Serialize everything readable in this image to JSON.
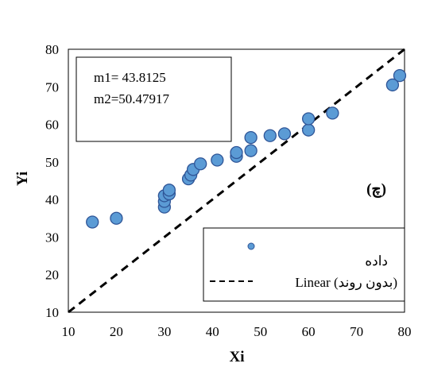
{
  "chart_data": {
    "type": "scatter",
    "panel_label": "(چ)",
    "xlabel": "Xi",
    "ylabel": "Yi",
    "xlim": [
      10,
      80
    ],
    "ylim": [
      10,
      80
    ],
    "x_ticks": [
      10,
      20,
      30,
      40,
      50,
      60,
      70,
      80
    ],
    "y_ticks": [
      10,
      20,
      30,
      40,
      50,
      60,
      70,
      80
    ],
    "grid": false,
    "annotation": {
      "line1": "m1= 43.8125",
      "line2": "m2=50.47917"
    },
    "legend": {
      "position": "bottom-right",
      "entries": [
        {
          "label": "داده",
          "kind": "marker"
        },
        {
          "label": "Linear  (بدون روند)",
          "kind": "dashed-line"
        }
      ]
    },
    "series": [
      {
        "kind": "scatter",
        "color": "#5B9BD5",
        "points": [
          [
            15,
            34
          ],
          [
            20,
            35
          ],
          [
            30,
            38
          ],
          [
            30,
            39.5
          ],
          [
            30,
            41
          ],
          [
            31,
            41.5
          ],
          [
            31,
            42.5
          ],
          [
            35,
            45.5
          ],
          [
            35.5,
            46.5
          ],
          [
            36,
            48
          ],
          [
            37.5,
            49.5
          ],
          [
            41,
            50.5
          ],
          [
            45,
            51.5
          ],
          [
            45,
            52.5
          ],
          [
            48,
            53
          ],
          [
            48,
            56.5
          ],
          [
            52,
            57
          ],
          [
            55,
            57.5
          ],
          [
            60,
            58.5
          ],
          [
            60,
            61.5
          ],
          [
            65,
            63
          ],
          [
            77.5,
            70.5
          ],
          [
            79,
            73
          ]
        ]
      },
      {
        "kind": "line",
        "style": "dashed",
        "color": "#000000",
        "points": [
          [
            10,
            10
          ],
          [
            80,
            80
          ]
        ]
      }
    ]
  }
}
